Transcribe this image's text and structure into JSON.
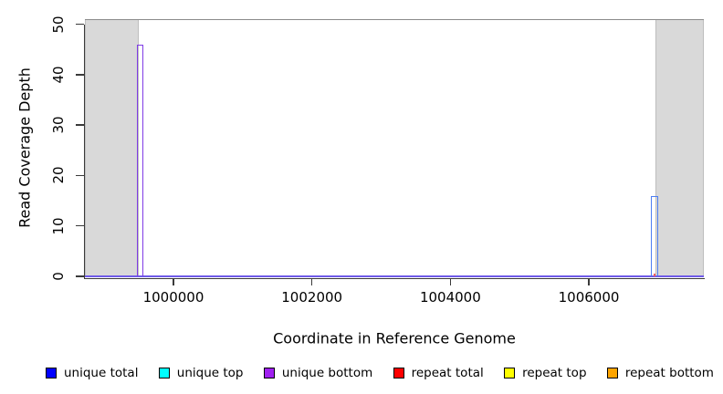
{
  "chart_data": {
    "type": "line",
    "title": "",
    "xlabel": "Coordinate in Reference Genome",
    "ylabel": "Read Coverage Depth",
    "xlim": [
      998721,
      1007661
    ],
    "ylim": [
      0,
      51
    ],
    "x_ticks": [
      1000000,
      1002000,
      1004000,
      1006000
    ],
    "y_ticks": [
      0,
      10,
      20,
      30,
      40,
      50
    ],
    "grid": false,
    "legend_position": "bottom",
    "background_shaded_regions": [
      {
        "x_from": 998721,
        "x_to": 999499,
        "color": "#d9d9d9"
      },
      {
        "x_from": 1006963,
        "x_to": 1007661,
        "color": "#d9d9d9"
      }
    ],
    "top_boundary_line": {
      "y": 51,
      "color": "#8a8a8a"
    },
    "baseline": {
      "y": 0,
      "color": "#6f5be8"
    },
    "spikes": [
      {
        "series": "unique bottom",
        "x_from": 999473,
        "x_to": 999565,
        "depth": 46,
        "color": "#7f3be6",
        "fill": false
      },
      {
        "series": "unique total",
        "x_from": 1006897,
        "x_to": 1007002,
        "depth": 16,
        "color": "#4d7ef2",
        "fill": false
      },
      {
        "series": "repeat total",
        "x_from": 1006938,
        "x_to": 1006968,
        "depth": 0.5,
        "color": "#f26060",
        "fill": true
      }
    ],
    "legend": [
      {
        "label": "unique total",
        "color": "#0000ff"
      },
      {
        "label": "unique top",
        "color": "#00ffff"
      },
      {
        "label": "unique bottom",
        "color": "#a020f0"
      },
      {
        "label": "repeat total",
        "color": "#ff0000"
      },
      {
        "label": "repeat top",
        "color": "#ffff00"
      },
      {
        "label": "repeat bottom",
        "color": "#ffa500"
      }
    ]
  }
}
